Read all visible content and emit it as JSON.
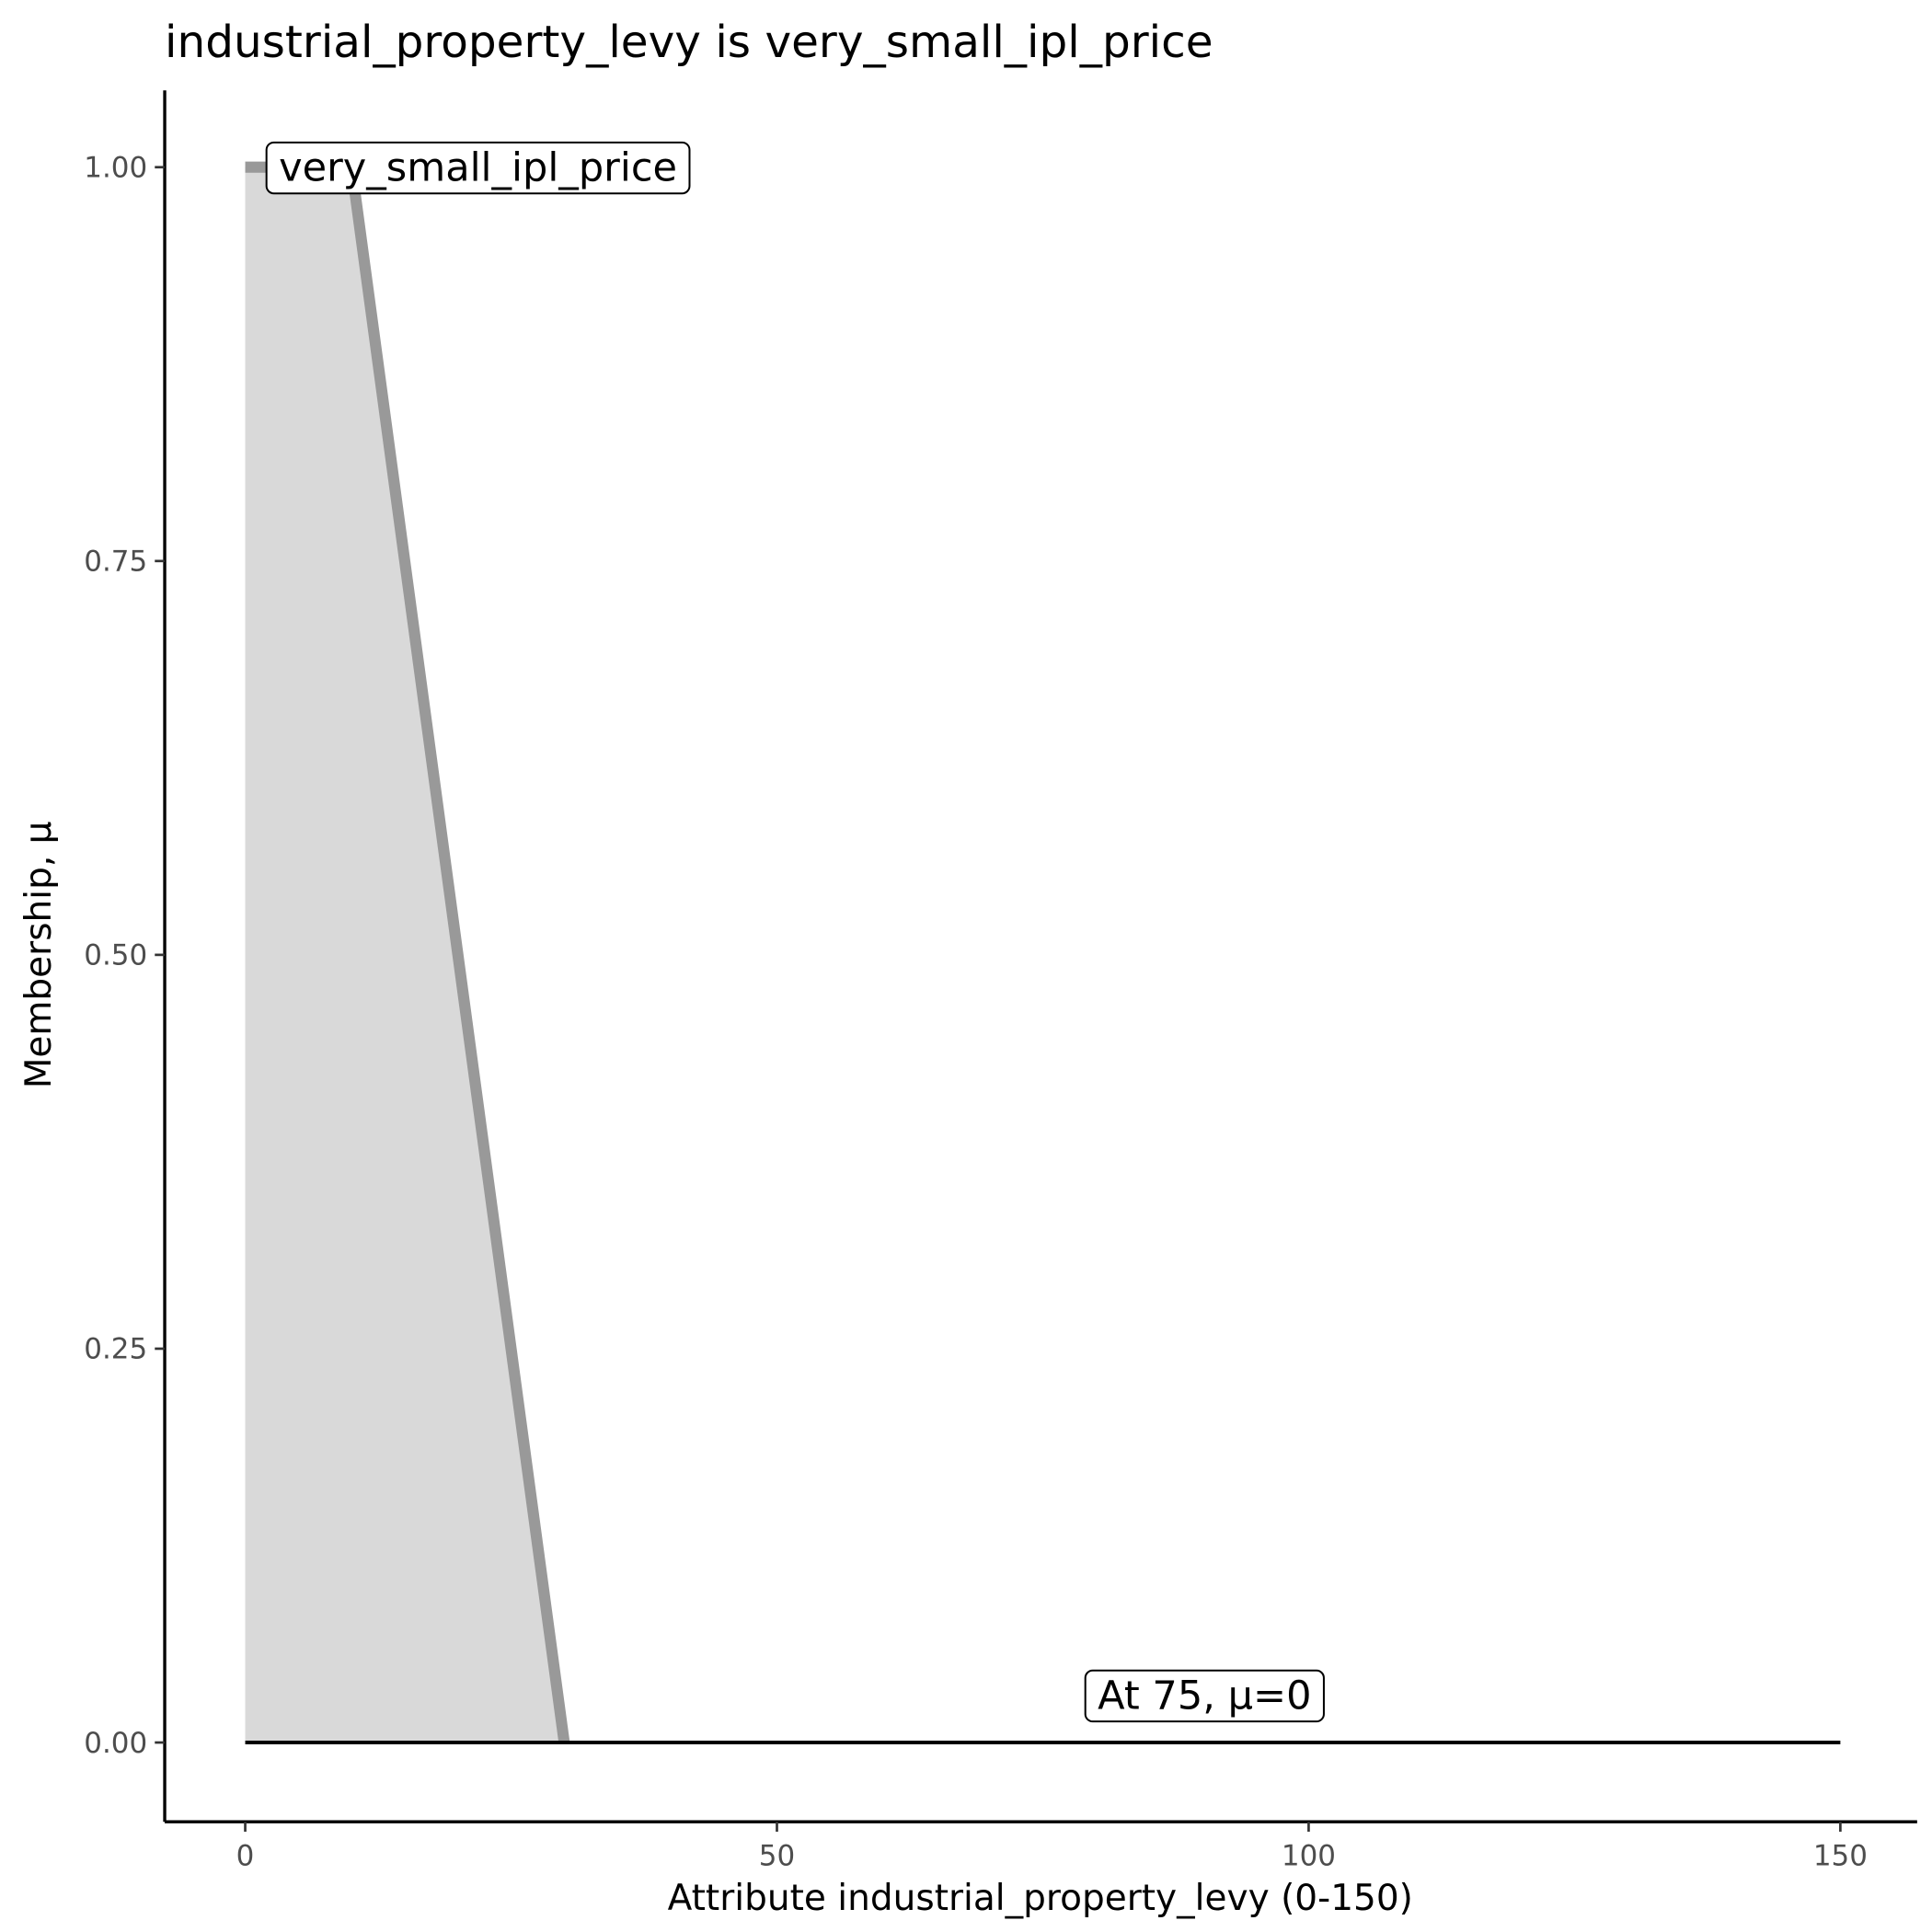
{
  "chart_data": {
    "type": "area",
    "title": "industrial_property_levy is very_small_ipl_price",
    "xlabel": "Attribute industrial_property_levy (0-150)",
    "ylabel": "Membership, μ",
    "xlim": [
      -7.5,
      157.5
    ],
    "ylim": [
      -0.05,
      1.05
    ],
    "x_ticks": [
      0,
      50,
      100,
      150
    ],
    "x_tick_labels": [
      "0",
      "50",
      "100",
      "150"
    ],
    "y_ticks": [
      0,
      0.25,
      0.5,
      0.75,
      1.0
    ],
    "y_tick_labels": [
      "0.00",
      "0.25",
      "0.50",
      "0.75",
      "1.00"
    ],
    "grid": false,
    "series": [
      {
        "name": "very_small_ipl_price",
        "x": [
          0,
          10,
          30
        ],
        "y": [
          1,
          1,
          0
        ],
        "color": "#999999",
        "fill": "#d9d9d9"
      }
    ],
    "evaluation_line": {
      "x": [
        0,
        150
      ],
      "y": [
        0,
        0
      ],
      "color": "#000000"
    },
    "annotations": [
      {
        "text": "very_small_ipl_price",
        "x": 2,
        "y": 1.0
      },
      {
        "text": "At 75, μ=0",
        "x": 79,
        "y": 0.03
      }
    ]
  }
}
